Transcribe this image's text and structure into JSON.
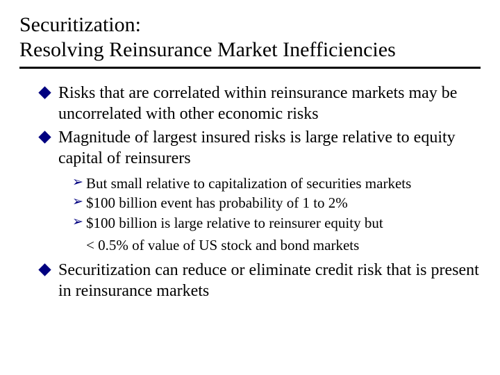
{
  "slide": {
    "title_line1": "Securitization:",
    "title_line2": "Resolving Reinsurance Market Inefficiencies",
    "bullets": [
      {
        "text": "Risks that are correlated within reinsurance markets may be uncorrelated with other economic risks"
      },
      {
        "text": "Magnitude of largest insured risks is large relative to equity capital of reinsurers"
      },
      {
        "text": "Securitization can reduce or eliminate credit risk that is present in reinsurance markets"
      }
    ],
    "sub_bullets": [
      {
        "text": "But small relative to capitalization of securities markets"
      },
      {
        "text": "$100 billion event has probability of 1 to 2%"
      },
      {
        "text": "$100 billion is large relative to reinsurer equity but"
      }
    ],
    "sub_continuation": "< 0.5% of value of US stock and bond markets",
    "colors": {
      "bullet_color": "#000080",
      "text_color": "#000000",
      "background": "#ffffff",
      "underline_color": "#000000"
    },
    "typography": {
      "title_fontsize": 30,
      "bullet_fontsize": 24,
      "sub_fontsize": 21,
      "font_family": "Times New Roman"
    }
  }
}
